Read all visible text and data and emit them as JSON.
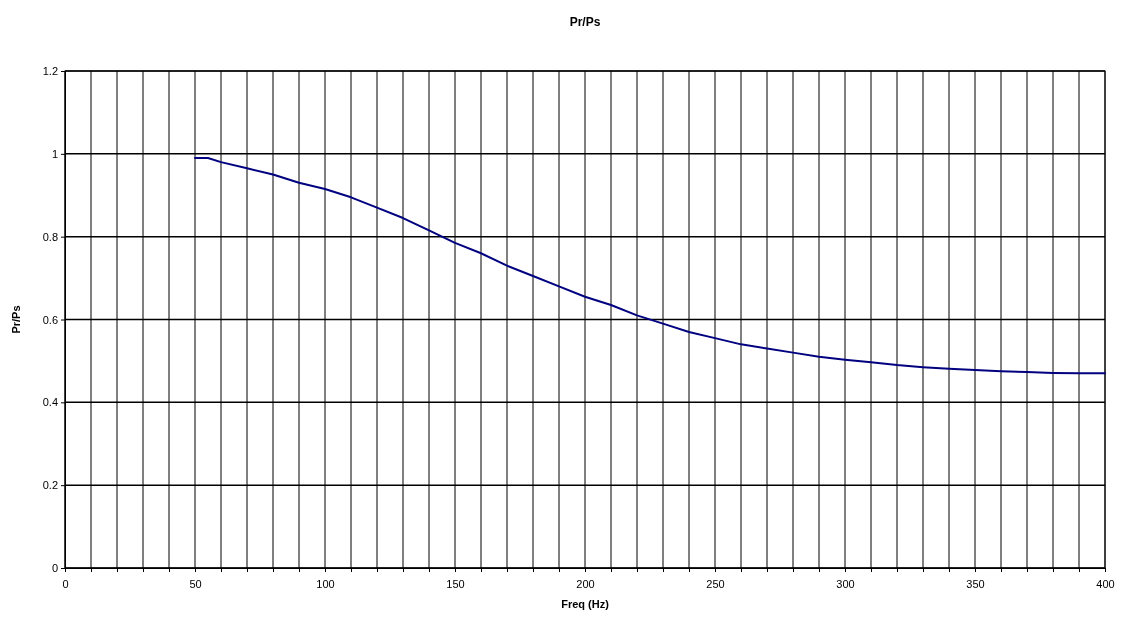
{
  "chart_data": {
    "type": "line",
    "title": "Pr/Ps",
    "xlabel": "Freq (Hz)",
    "ylabel": "Pr/Ps",
    "x": [
      50,
      55,
      60,
      70,
      80,
      90,
      100,
      110,
      120,
      130,
      140,
      150,
      160,
      170,
      180,
      190,
      200,
      210,
      220,
      230,
      240,
      250,
      260,
      270,
      280,
      290,
      300,
      310,
      320,
      330,
      340,
      350,
      360,
      370,
      380,
      390,
      400
    ],
    "series": [
      {
        "color": "#000080",
        "values": [
          0.99,
          0.99,
          0.98,
          0.965,
          0.95,
          0.93,
          0.915,
          0.895,
          0.87,
          0.845,
          0.815,
          0.785,
          0.76,
          0.73,
          0.705,
          0.68,
          0.655,
          0.635,
          0.61,
          0.59,
          0.57,
          0.555,
          0.54,
          0.53,
          0.52,
          0.51,
          0.503,
          0.497,
          0.49,
          0.485,
          0.481,
          0.478,
          0.475,
          0.473,
          0.471,
          0.47,
          0.47
        ]
      }
    ],
    "xlim": [
      0,
      400
    ],
    "ylim": [
      0,
      1.2
    ],
    "xticks": [
      0,
      {
        "value": 10,
        "label": null
      },
      {
        "value": 20,
        "label": null
      },
      {
        "value": 30,
        "label": null
      },
      {
        "value": 40,
        "label": null
      },
      50,
      {
        "value": 60,
        "label": null
      },
      {
        "value": 70,
        "label": null
      },
      {
        "value": 80,
        "label": null
      },
      {
        "value": 90,
        "label": null
      },
      100,
      {
        "value": 110,
        "label": null
      },
      {
        "value": 120,
        "label": null
      },
      {
        "value": 130,
        "label": null
      },
      {
        "value": 140,
        "label": null
      },
      150,
      {
        "value": 160,
        "label": null
      },
      {
        "value": 170,
        "label": null
      },
      {
        "value": 180,
        "label": null
      },
      {
        "value": 190,
        "label": null
      },
      200,
      {
        "value": 210,
        "label": null
      },
      {
        "value": 220,
        "label": null
      },
      {
        "value": 230,
        "label": null
      },
      {
        "value": 240,
        "label": null
      },
      250,
      {
        "value": 260,
        "label": null
      },
      {
        "value": 270,
        "label": null
      },
      {
        "value": 280,
        "label": null
      },
      {
        "value": 290,
        "label": null
      },
      300,
      {
        "value": 310,
        "label": null
      },
      {
        "value": 320,
        "label": null
      },
      {
        "value": 330,
        "label": null
      },
      {
        "value": 340,
        "label": null
      },
      350,
      {
        "value": 360,
        "label": null
      },
      {
        "value": 370,
        "label": null
      },
      {
        "value": 380,
        "label": null
      },
      {
        "value": 390,
        "label": null
      },
      400
    ],
    "yticks": [
      0,
      0.2,
      0.4,
      0.6,
      0.8,
      1,
      1.2
    ],
    "grid": true,
    "marker": "none",
    "line_style": "solid"
  }
}
